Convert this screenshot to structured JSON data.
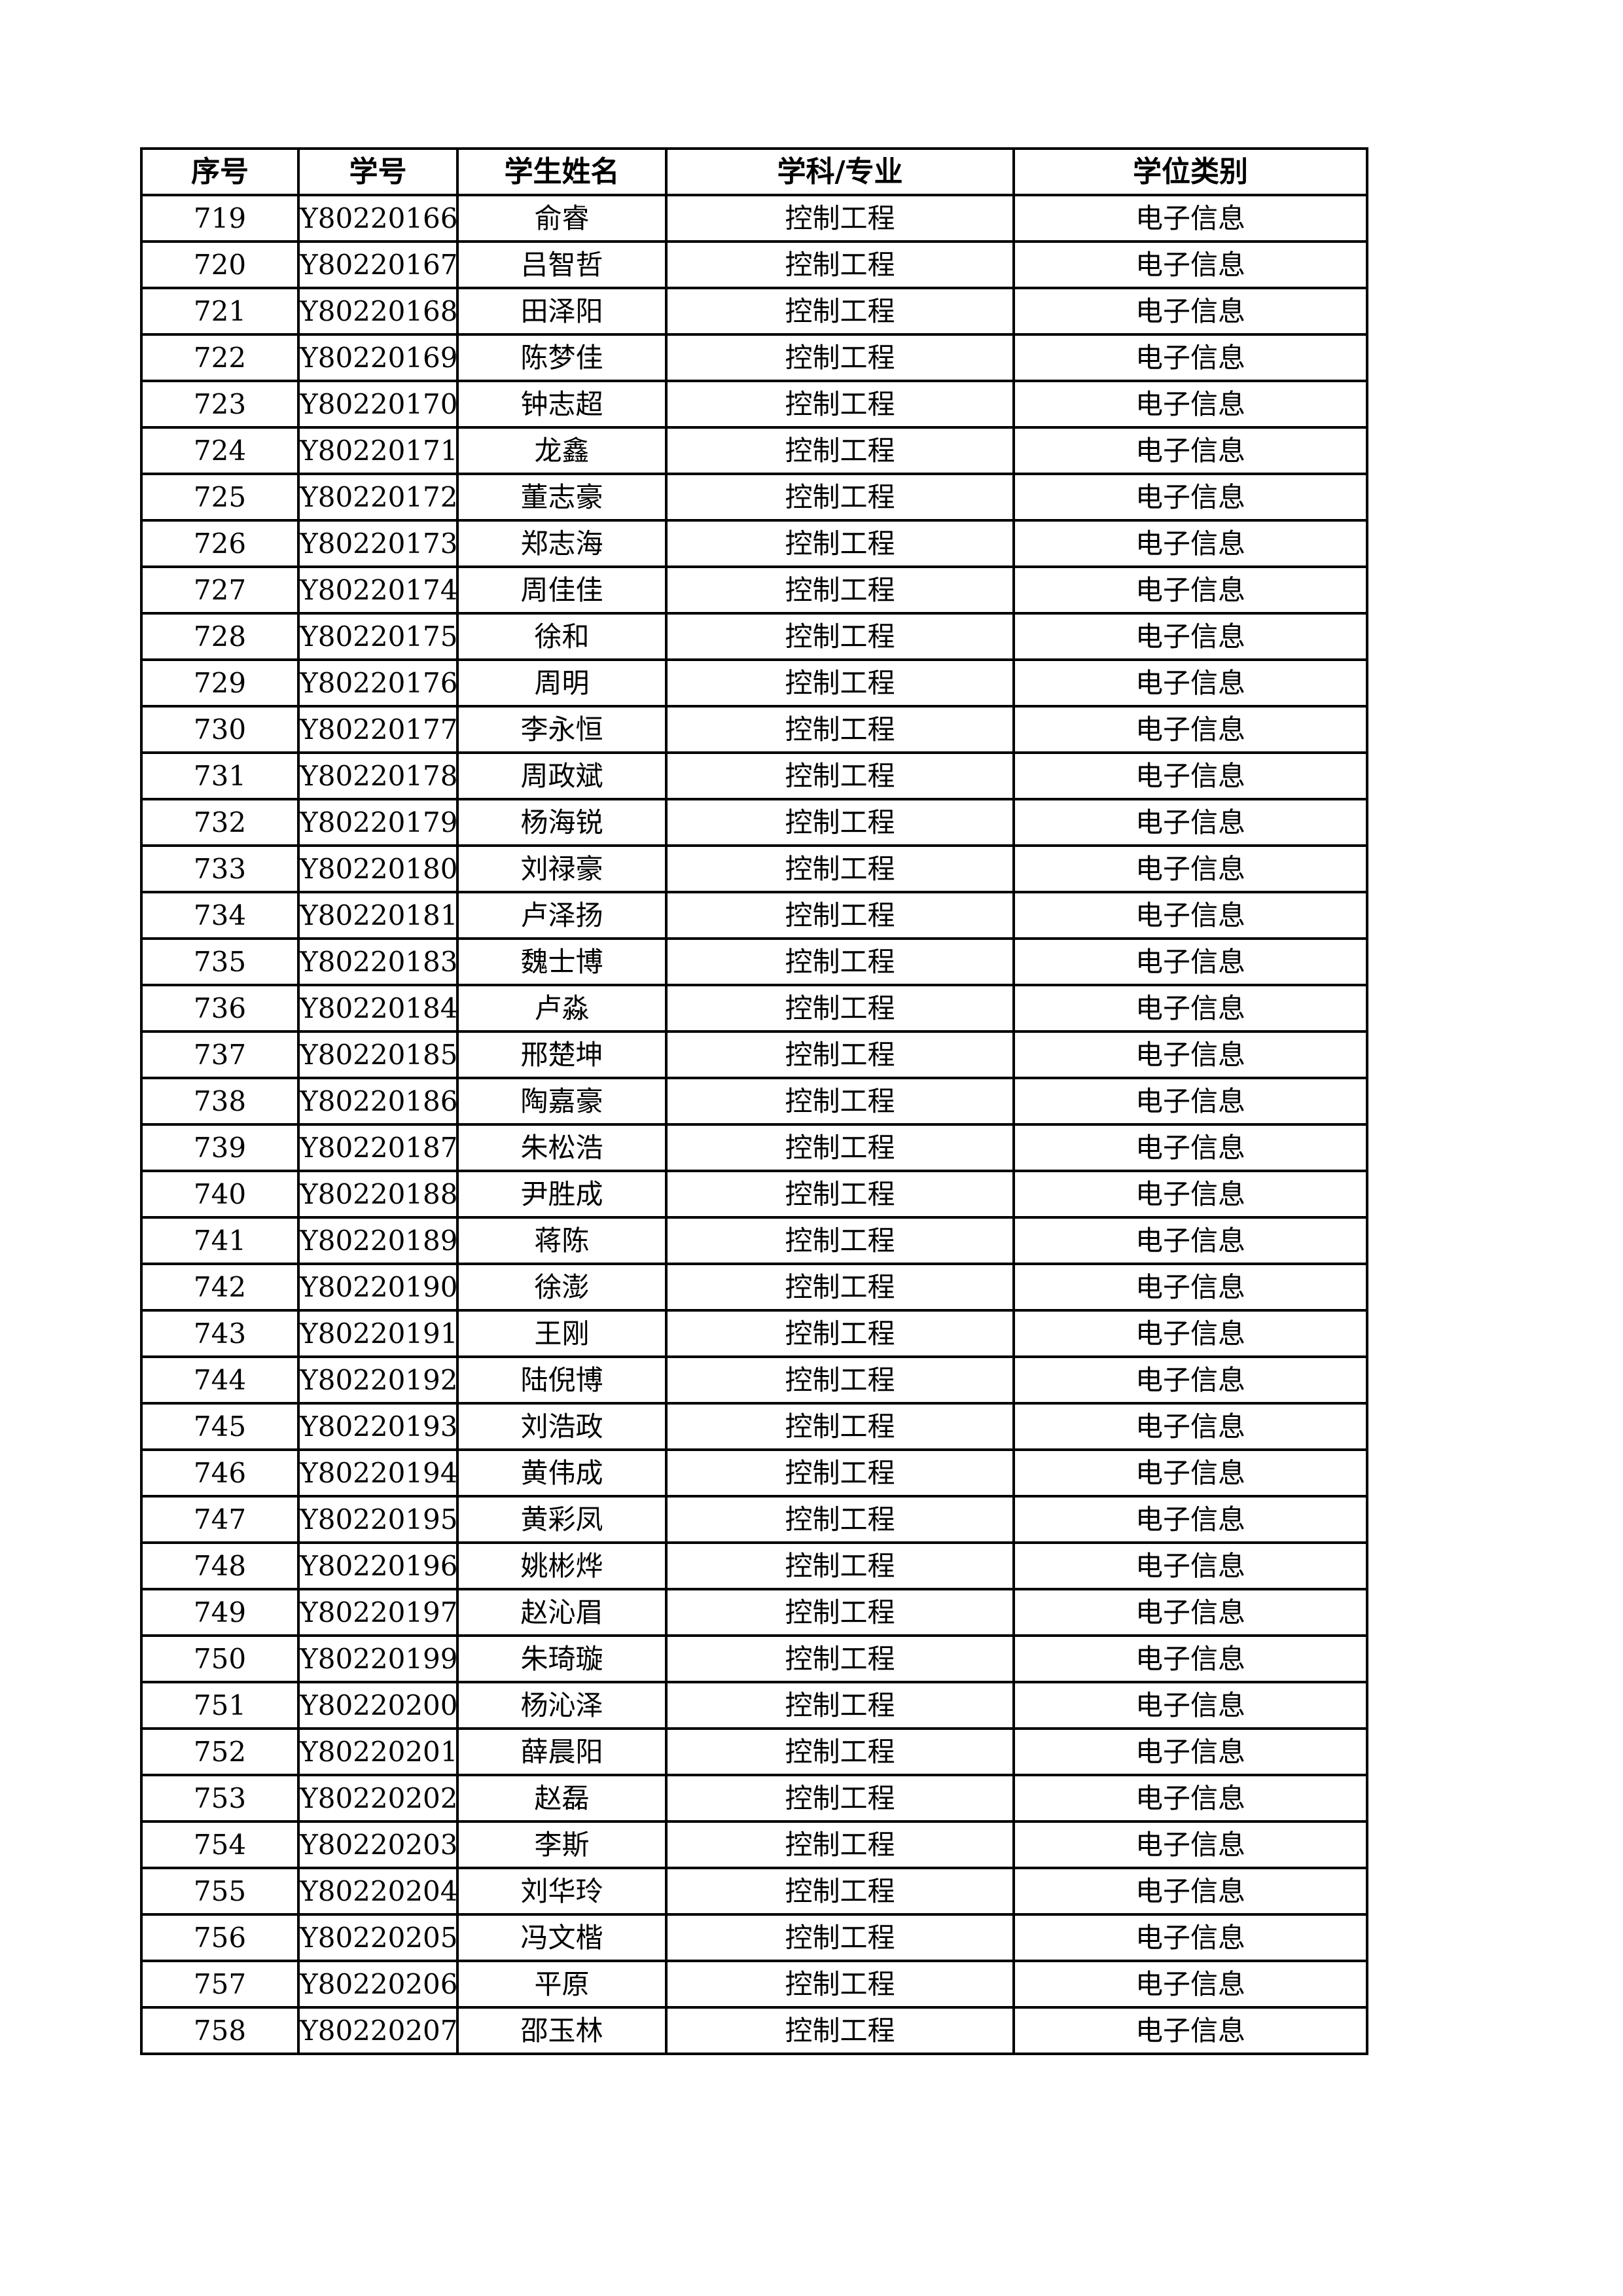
{
  "table": {
    "headers": [
      "序号",
      "学号",
      "学生姓名",
      "学科/专业",
      "学位类别"
    ],
    "rows": [
      [
        "719",
        "Y80220166",
        "俞睿",
        "控制工程",
        "电子信息"
      ],
      [
        "720",
        "Y80220167",
        "吕智哲",
        "控制工程",
        "电子信息"
      ],
      [
        "721",
        "Y80220168",
        "田泽阳",
        "控制工程",
        "电子信息"
      ],
      [
        "722",
        "Y80220169",
        "陈梦佳",
        "控制工程",
        "电子信息"
      ],
      [
        "723",
        "Y80220170",
        "钟志超",
        "控制工程",
        "电子信息"
      ],
      [
        "724",
        "Y80220171",
        "龙鑫",
        "控制工程",
        "电子信息"
      ],
      [
        "725",
        "Y80220172",
        "董志豪",
        "控制工程",
        "电子信息"
      ],
      [
        "726",
        "Y80220173",
        "郑志海",
        "控制工程",
        "电子信息"
      ],
      [
        "727",
        "Y80220174",
        "周佳佳",
        "控制工程",
        "电子信息"
      ],
      [
        "728",
        "Y80220175",
        "徐和",
        "控制工程",
        "电子信息"
      ],
      [
        "729",
        "Y80220176",
        "周明",
        "控制工程",
        "电子信息"
      ],
      [
        "730",
        "Y80220177",
        "李永恒",
        "控制工程",
        "电子信息"
      ],
      [
        "731",
        "Y80220178",
        "周政斌",
        "控制工程",
        "电子信息"
      ],
      [
        "732",
        "Y80220179",
        "杨海锐",
        "控制工程",
        "电子信息"
      ],
      [
        "733",
        "Y80220180",
        "刘禄豪",
        "控制工程",
        "电子信息"
      ],
      [
        "734",
        "Y80220181",
        "卢泽扬",
        "控制工程",
        "电子信息"
      ],
      [
        "735",
        "Y80220183",
        "魏士博",
        "控制工程",
        "电子信息"
      ],
      [
        "736",
        "Y80220184",
        "卢淼",
        "控制工程",
        "电子信息"
      ],
      [
        "737",
        "Y80220185",
        "邢楚坤",
        "控制工程",
        "电子信息"
      ],
      [
        "738",
        "Y80220186",
        "陶嘉豪",
        "控制工程",
        "电子信息"
      ],
      [
        "739",
        "Y80220187",
        "朱松浩",
        "控制工程",
        "电子信息"
      ],
      [
        "740",
        "Y80220188",
        "尹胜成",
        "控制工程",
        "电子信息"
      ],
      [
        "741",
        "Y80220189",
        "蒋陈",
        "控制工程",
        "电子信息"
      ],
      [
        "742",
        "Y80220190",
        "徐澎",
        "控制工程",
        "电子信息"
      ],
      [
        "743",
        "Y80220191",
        "王刚",
        "控制工程",
        "电子信息"
      ],
      [
        "744",
        "Y80220192",
        "陆倪博",
        "控制工程",
        "电子信息"
      ],
      [
        "745",
        "Y80220193",
        "刘浩政",
        "控制工程",
        "电子信息"
      ],
      [
        "746",
        "Y80220194",
        "黄伟成",
        "控制工程",
        "电子信息"
      ],
      [
        "747",
        "Y80220195",
        "黄彩凤",
        "控制工程",
        "电子信息"
      ],
      [
        "748",
        "Y80220196",
        "姚彬烨",
        "控制工程",
        "电子信息"
      ],
      [
        "749",
        "Y80220197",
        "赵沁眉",
        "控制工程",
        "电子信息"
      ],
      [
        "750",
        "Y80220199",
        "朱琦璇",
        "控制工程",
        "电子信息"
      ],
      [
        "751",
        "Y80220200",
        "杨沁泽",
        "控制工程",
        "电子信息"
      ],
      [
        "752",
        "Y80220201",
        "薛晨阳",
        "控制工程",
        "电子信息"
      ],
      [
        "753",
        "Y80220202",
        "赵磊",
        "控制工程",
        "电子信息"
      ],
      [
        "754",
        "Y80220203",
        "李斯",
        "控制工程",
        "电子信息"
      ],
      [
        "755",
        "Y80220204",
        "刘华玲",
        "控制工程",
        "电子信息"
      ],
      [
        "756",
        "Y80220205",
        "冯文楷",
        "控制工程",
        "电子信息"
      ],
      [
        "757",
        "Y80220206",
        "平原",
        "控制工程",
        "电子信息"
      ],
      [
        "758",
        "Y80220207",
        "邵玉林",
        "控制工程",
        "电子信息"
      ]
    ]
  }
}
